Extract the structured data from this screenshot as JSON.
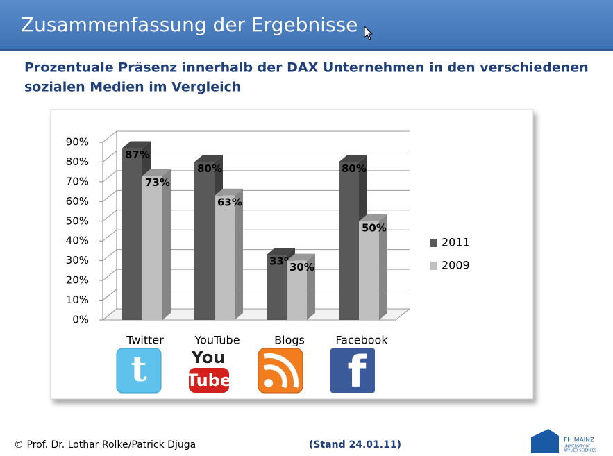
{
  "header": {
    "title": "Zusammenfassung der Ergebnisse"
  },
  "subtitle": [
    "Prozentuale Präsenz innerhalb der DAX Unternehmen in den verschiedenen",
    "sozialen Medien im Vergleich"
  ],
  "chart_data": {
    "type": "bar3d",
    "categories": [
      "Twitter",
      "YouTube",
      "Blogs",
      "Facebook"
    ],
    "series": [
      {
        "name": "2011",
        "color": "#595959",
        "values": [
          87,
          80,
          33,
          80
        ],
        "value_labels": [
          "87%",
          "80%",
          "33%",
          "80%"
        ]
      },
      {
        "name": "2009",
        "color": "#bfbfbf",
        "values": [
          73,
          63,
          30,
          50
        ],
        "value_labels": [
          "73%",
          "63%",
          "30%",
          "50%"
        ]
      }
    ],
    "ylim": [
      0,
      90
    ],
    "yticks": [
      {
        "value": 0,
        "label": "0%"
      },
      {
        "value": 10,
        "label": "10%"
      },
      {
        "value": 20,
        "label": "20%"
      },
      {
        "value": 30,
        "label": "30%"
      },
      {
        "value": 40,
        "label": "40%"
      },
      {
        "value": 50,
        "label": "50%"
      },
      {
        "value": 60,
        "label": "60%"
      },
      {
        "value": 70,
        "label": "70%"
      },
      {
        "value": 80,
        "label": "80%"
      },
      {
        "value": 90,
        "label": "90%"
      }
    ],
    "grid": true,
    "legend": "right"
  },
  "icons": {
    "twitter": "t",
    "youtube": [
      "You",
      "Tube"
    ],
    "facebook": "f"
  },
  "footer": {
    "author": "© Prof. Dr. Lothar Rolke/Patrick Djuga",
    "date": "(Stand 24.01.11)",
    "logo": [
      "FH MAINZ",
      "UNIVERSITY OF",
      "APPLIED SCIENCES"
    ]
  }
}
